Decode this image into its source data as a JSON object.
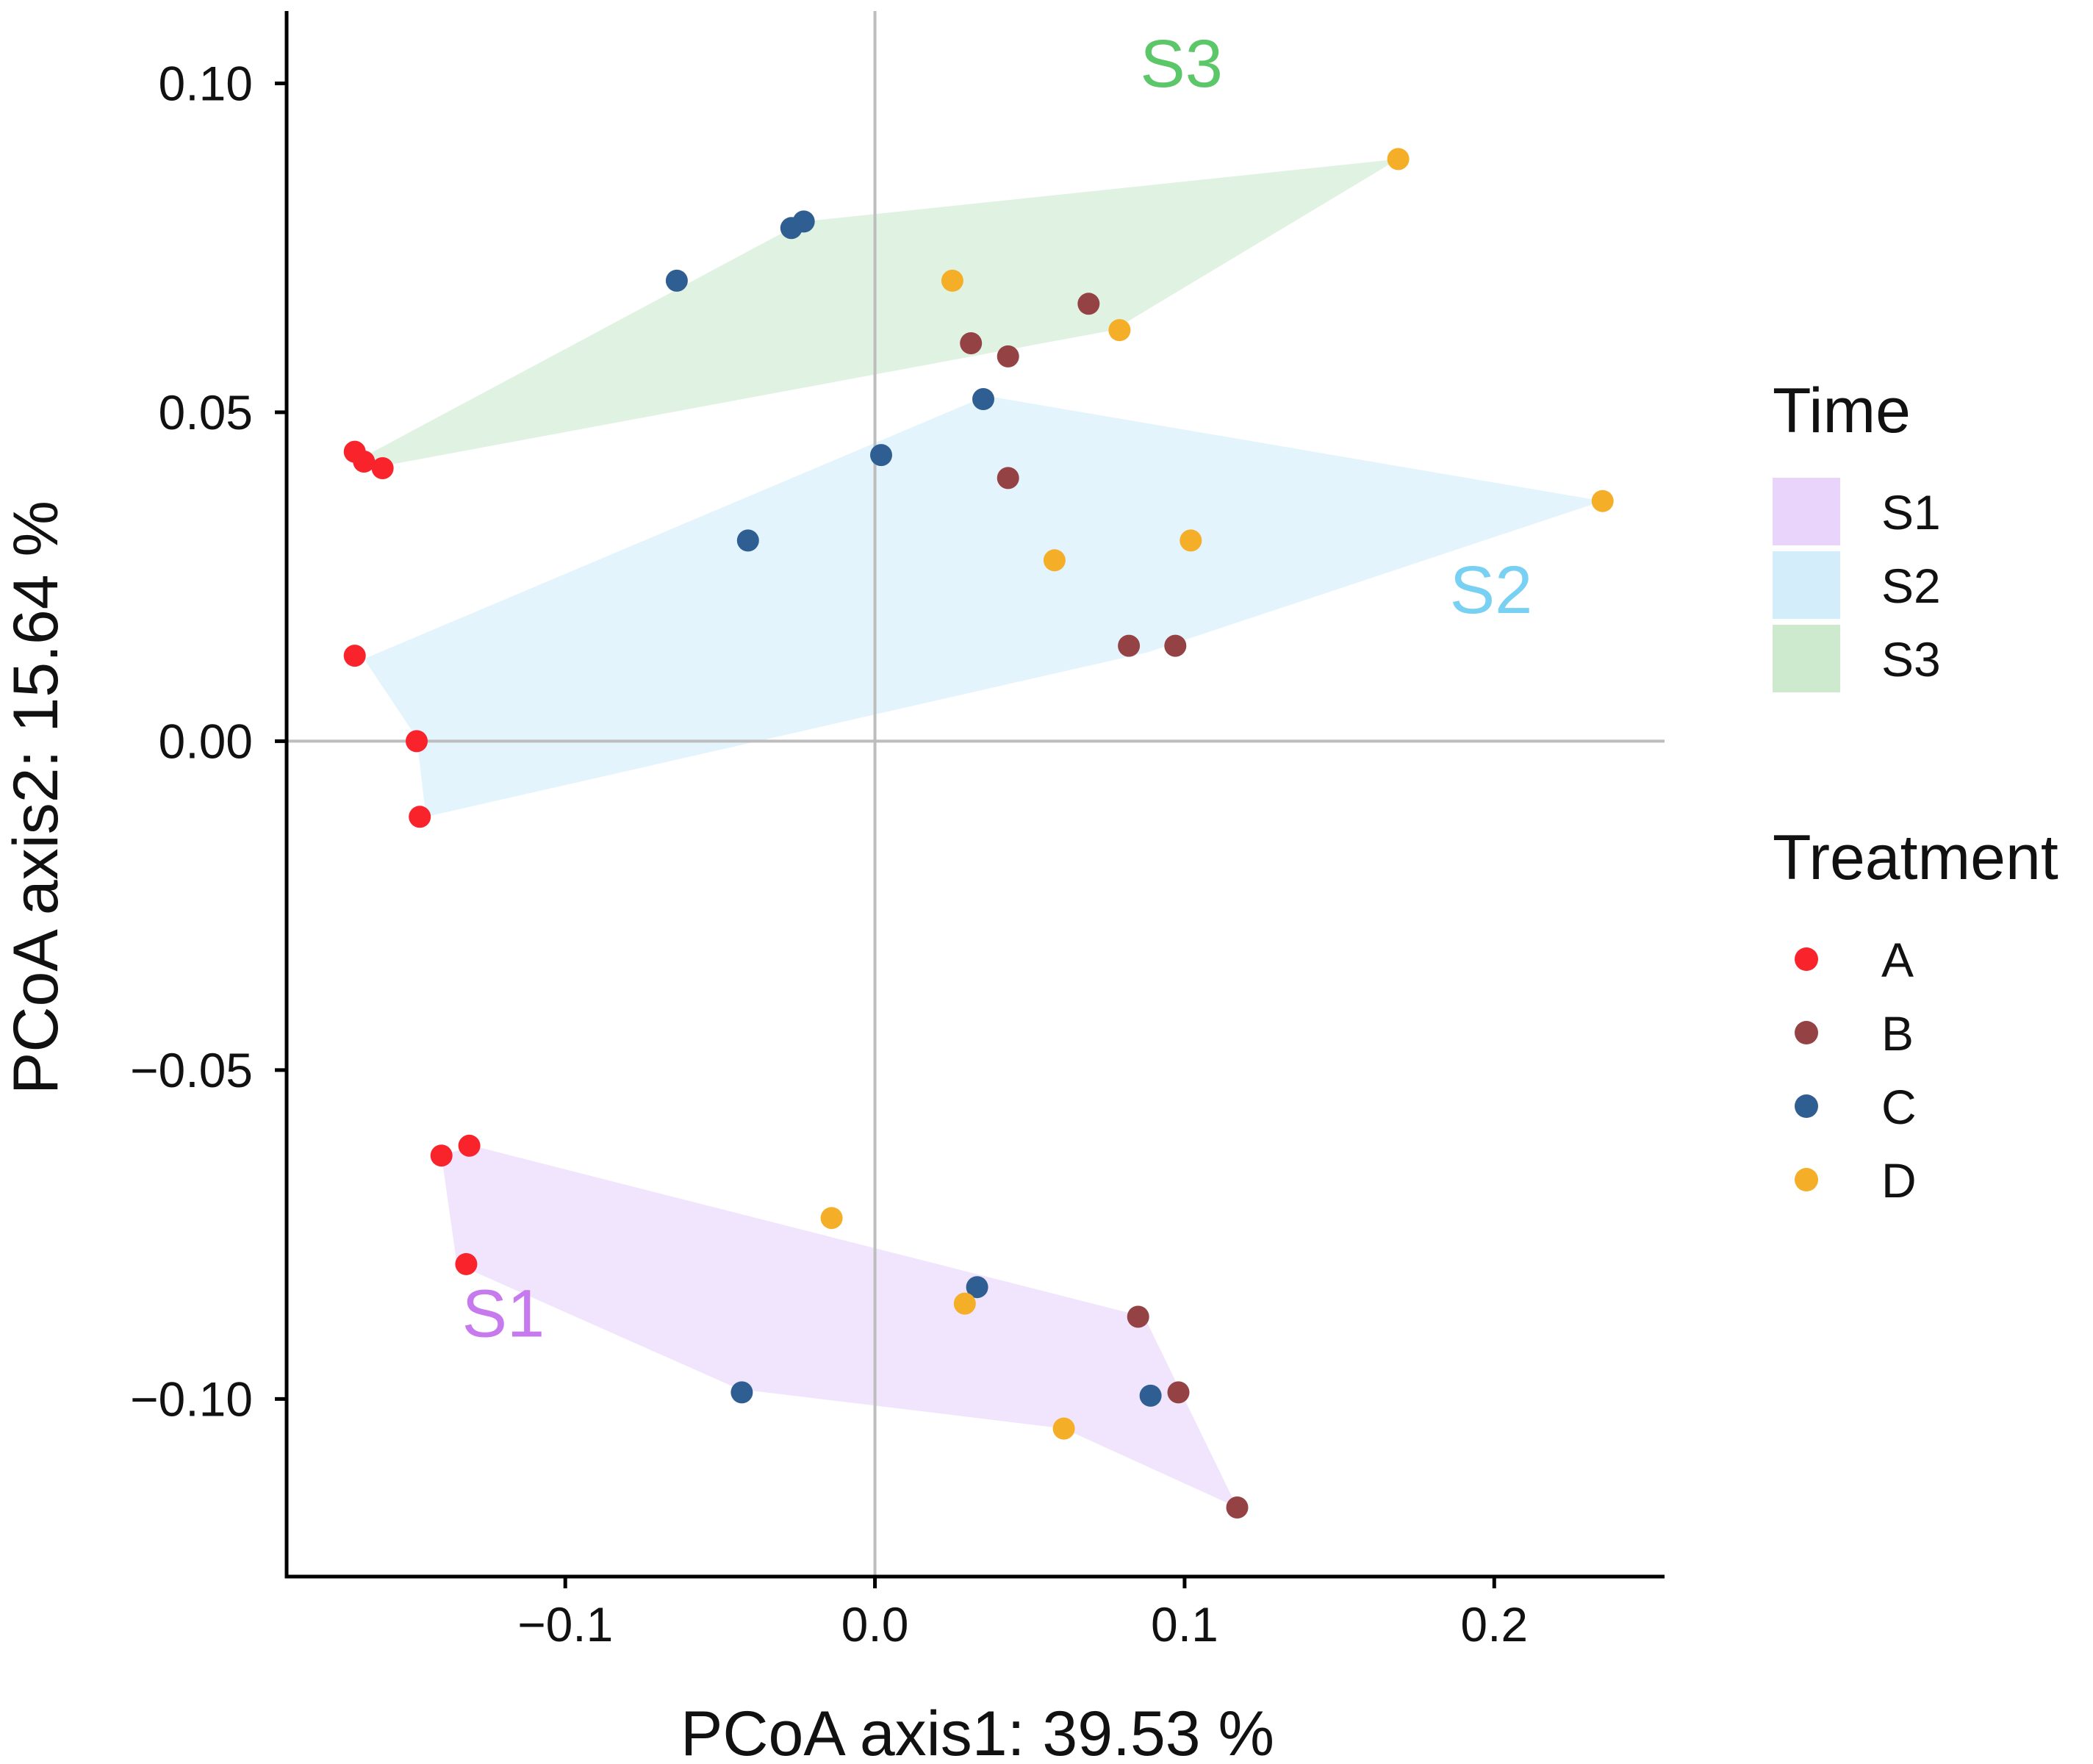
{
  "chart_data": {
    "type": "scatter",
    "title": "",
    "xlabel": "PCoA axis1:  39.53 %",
    "ylabel": "PCoA axis2:  15.64 %",
    "xlim": [
      -0.19,
      0.255
    ],
    "ylim": [
      -0.127,
      0.111
    ],
    "xticks": [
      -0.1,
      0.0,
      0.1,
      0.2
    ],
    "xtick_labels": [
      "−0.1",
      "0.0",
      "0.1",
      "0.2"
    ],
    "yticks": [
      0.1,
      0.05,
      0.0,
      -0.05,
      -0.1
    ],
    "ytick_labels": [
      "0.10",
      "0.05",
      "0.00",
      "−0.05",
      "−0.10"
    ],
    "reference_lines": {
      "x": 0,
      "y": 0
    },
    "groups_legend": {
      "title": "Time",
      "items": [
        {
          "name": "S1",
          "color": "#E9D5FB"
        },
        {
          "name": "S2",
          "color": "#D3EEFA"
        },
        {
          "name": "S3",
          "color": "#CDEACF"
        }
      ]
    },
    "treatment_legend": {
      "title": "Treatment",
      "items": [
        {
          "name": "A",
          "color": "#F8232B"
        },
        {
          "name": "B",
          "color": "#944244"
        },
        {
          "name": "C",
          "color": "#2F5F92"
        },
        {
          "name": "D",
          "color": "#F5AE27"
        }
      ]
    },
    "hulls": [
      {
        "group": "S1",
        "label": "S1",
        "label_color": "#C779EE",
        "label_at": [
          -0.12,
          -0.0905
        ],
        "points": [
          [
            -0.13,
            -0.0615
          ],
          [
            0.087,
            -0.0875
          ],
          [
            0.117,
            -0.1165
          ],
          [
            0.061,
            -0.1045
          ],
          [
            -0.044,
            -0.0985
          ],
          [
            -0.135,
            -0.0795
          ],
          [
            -0.14,
            -0.063
          ]
        ]
      },
      {
        "group": "S2",
        "label": "S2",
        "label_color": "#78D1F3",
        "label_at": [
          0.199,
          0.0195
        ],
        "points": [
          [
            -0.165,
            0.0125
          ],
          [
            0.036,
            0.0525
          ],
          [
            0.235,
            0.0365
          ],
          [
            0.088,
            0.0135
          ],
          [
            -0.145,
            -0.0115
          ],
          [
            -0.148,
            0.0005
          ]
        ]
      },
      {
        "group": "S3",
        "label": "S3",
        "label_color": "#5CC768",
        "label_at": [
          0.099,
          0.0995
        ],
        "points": [
          [
            -0.168,
            0.0425
          ],
          [
            -0.023,
            0.079
          ],
          [
            0.169,
            0.0885
          ],
          [
            0.077,
            0.0625
          ],
          [
            -0.157,
            0.042
          ]
        ]
      }
    ],
    "series": [
      {
        "name": "A",
        "points": [
          [
            -0.168,
            0.044
          ],
          [
            -0.165,
            0.0425
          ],
          [
            -0.159,
            0.0415
          ],
          [
            -0.168,
            0.013
          ],
          [
            -0.148,
            0.0
          ],
          [
            -0.147,
            -0.0115
          ],
          [
            -0.131,
            -0.0615
          ],
          [
            -0.14,
            -0.063
          ],
          [
            -0.132,
            -0.0795
          ]
        ]
      },
      {
        "name": "B",
        "points": [
          [
            0.069,
            0.0665
          ],
          [
            0.031,
            0.0605
          ],
          [
            0.043,
            0.0585
          ],
          [
            0.043,
            0.04
          ],
          [
            0.082,
            0.0145
          ],
          [
            0.097,
            0.0145
          ],
          [
            0.085,
            -0.0875
          ],
          [
            0.098,
            -0.099
          ],
          [
            0.117,
            -0.1165
          ]
        ]
      },
      {
        "name": "C",
        "points": [
          [
            -0.023,
            0.079
          ],
          [
            -0.027,
            0.078
          ],
          [
            -0.064,
            0.07
          ],
          [
            0.035,
            0.052
          ],
          [
            0.002,
            0.0435
          ],
          [
            -0.041,
            0.0305
          ],
          [
            0.033,
            -0.083
          ],
          [
            -0.043,
            -0.099
          ],
          [
            0.089,
            -0.0995
          ]
        ]
      },
      {
        "name": "D",
        "points": [
          [
            0.169,
            0.0885
          ],
          [
            0.025,
            0.07
          ],
          [
            0.079,
            0.0625
          ],
          [
            0.235,
            0.0365
          ],
          [
            0.102,
            0.0305
          ],
          [
            0.058,
            0.0275
          ],
          [
            -0.014,
            -0.0725
          ],
          [
            0.029,
            -0.0855
          ],
          [
            0.061,
            -0.1045
          ]
        ]
      }
    ]
  }
}
